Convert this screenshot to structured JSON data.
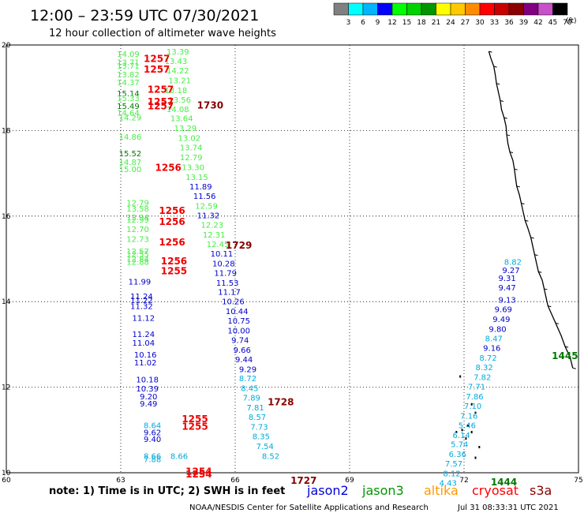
{
  "header": {
    "title": "12:00 – 23:59 UTC 07/30/2021",
    "subtitle": "12 hour collection of altimeter wave heights"
  },
  "colorbar": {
    "colors": [
      "#808080",
      "#00ffff",
      "#00b4ff",
      "#0000ff",
      "#00ff00",
      "#00d200",
      "#009600",
      "#ffff00",
      "#ffc800",
      "#ff8c00",
      "#ff0000",
      "#c80000",
      "#8b0000",
      "#800080",
      "#c850c8",
      "#000000"
    ],
    "labels": [
      "3",
      "6",
      "9",
      "12",
      "15",
      "18",
      "21",
      "24",
      "27",
      "30",
      "33",
      "36",
      "39",
      "42",
      "45",
      "70"
    ],
    "unit": "(ft)"
  },
  "footer": {
    "note": "note: 1) Time is in UTC; 2) SWH is in feet",
    "satellites": [
      {
        "name": "jason2",
        "color": "#0000dd"
      },
      {
        "name": "jason3",
        "color": "#009600"
      },
      {
        "name": "altika",
        "color": "#ff9900"
      },
      {
        "name": "cryosat",
        "color": "#ff0000"
      },
      {
        "name": "s3a",
        "color": "#8b0000"
      }
    ],
    "credit": "NOAA/NESDIS Center for Satellite Applications and Research",
    "timestamp": "Jul 31 08:33:31 UTC 2021"
  },
  "chart_data": {
    "type": "scatter",
    "xlim": [
      60,
      75
    ],
    "ylim": [
      10,
      20
    ],
    "xticks": [
      "60",
      "63",
      "66",
      "69",
      "72",
      "75"
    ],
    "yticks": [
      "10",
      "12",
      "14",
      "16",
      "18",
      "20"
    ],
    "grid": true,
    "colors": {
      "g": "#44ee44",
      "dg": "#007700",
      "b": "#0000cc",
      "c": "#00aadd",
      "r": "#ee0000",
      "m": "#880000"
    },
    "wave_labels": [
      {
        "x": 62.9,
        "y": 19.8,
        "t": "14.09",
        "c": "g"
      },
      {
        "x": 64.2,
        "y": 19.85,
        "t": "13.39",
        "c": "g"
      },
      {
        "x": 64.15,
        "y": 19.63,
        "t": "13.43",
        "c": "g"
      },
      {
        "x": 62.9,
        "y": 19.6,
        "t": "13.71",
        "c": "g"
      },
      {
        "x": 62.9,
        "y": 19.52,
        "t": "13.71",
        "c": "g"
      },
      {
        "x": 64.2,
        "y": 19.41,
        "t": "14.22",
        "c": "g"
      },
      {
        "x": 62.9,
        "y": 19.32,
        "t": "13.82",
        "c": "g"
      },
      {
        "x": 64.25,
        "y": 19.18,
        "t": "13.21",
        "c": "g"
      },
      {
        "x": 62.9,
        "y": 19.13,
        "t": "14.37",
        "c": "g"
      },
      {
        "x": 64.15,
        "y": 18.95,
        "t": "13.18",
        "c": "g"
      },
      {
        "x": 62.9,
        "y": 18.87,
        "t": "15.14",
        "c": "dg"
      },
      {
        "x": 64.25,
        "y": 18.73,
        "t": "13.56",
        "c": "g"
      },
      {
        "x": 62.9,
        "y": 18.76,
        "t": "15.33",
        "c": "g"
      },
      {
        "x": 62.9,
        "y": 18.58,
        "t": "15.49",
        "c": "dg"
      },
      {
        "x": 64.2,
        "y": 18.51,
        "t": "14.08",
        "c": "g"
      },
      {
        "x": 62.9,
        "y": 18.42,
        "t": "14.64",
        "c": "g"
      },
      {
        "x": 62.95,
        "y": 18.31,
        "t": "14.29",
        "c": "g"
      },
      {
        "x": 64.3,
        "y": 18.29,
        "t": "13.64",
        "c": "g"
      },
      {
        "x": 64.4,
        "y": 18.06,
        "t": "13.29",
        "c": "g"
      },
      {
        "x": 62.95,
        "y": 17.86,
        "t": "14.86",
        "c": "g"
      },
      {
        "x": 64.5,
        "y": 17.83,
        "t": "13.02",
        "c": "g"
      },
      {
        "x": 64.55,
        "y": 17.61,
        "t": "13.74",
        "c": "g"
      },
      {
        "x": 62.95,
        "y": 17.47,
        "t": "15.52",
        "c": "dg"
      },
      {
        "x": 64.55,
        "y": 17.38,
        "t": "12.79",
        "c": "g"
      },
      {
        "x": 62.95,
        "y": 17.27,
        "t": "14.87",
        "c": "g"
      },
      {
        "x": 64.6,
        "y": 17.15,
        "t": "13.30",
        "c": "g"
      },
      {
        "x": 62.95,
        "y": 17.1,
        "t": "15.00",
        "c": "g"
      },
      {
        "x": 64.7,
        "y": 16.92,
        "t": "13.15",
        "c": "g"
      },
      {
        "x": 64.8,
        "y": 16.7,
        "t": "11.89",
        "c": "b"
      },
      {
        "x": 64.9,
        "y": 16.48,
        "t": "11.56",
        "c": "b"
      },
      {
        "x": 63.15,
        "y": 16.32,
        "t": "12.79",
        "c": "g"
      },
      {
        "x": 64.95,
        "y": 16.25,
        "t": "12.59",
        "c": "g"
      },
      {
        "x": 63.15,
        "y": 16.18,
        "t": "13.58",
        "c": "g"
      },
      {
        "x": 65.0,
        "y": 16.02,
        "t": "11.32",
        "c": "b"
      },
      {
        "x": 63.15,
        "y": 15.98,
        "t": "12.94",
        "c": "g"
      },
      {
        "x": 63.15,
        "y": 15.92,
        "t": "12.99",
        "c": "g"
      },
      {
        "x": 65.1,
        "y": 15.8,
        "t": "12.23",
        "c": "g"
      },
      {
        "x": 63.15,
        "y": 15.7,
        "t": "12.70",
        "c": "g"
      },
      {
        "x": 65.15,
        "y": 15.57,
        "t": "12.31",
        "c": "g"
      },
      {
        "x": 63.15,
        "y": 15.47,
        "t": "12.73",
        "c": "g"
      },
      {
        "x": 65.25,
        "y": 15.35,
        "t": "12.45",
        "c": "g"
      },
      {
        "x": 63.15,
        "y": 15.18,
        "t": "12.57",
        "c": "g"
      },
      {
        "x": 63.15,
        "y": 15.12,
        "t": "12.55",
        "c": "g"
      },
      {
        "x": 65.35,
        "y": 15.13,
        "t": "10.11",
        "c": "b"
      },
      {
        "x": 63.15,
        "y": 15.0,
        "t": "12.84",
        "c": "g"
      },
      {
        "x": 63.15,
        "y": 14.94,
        "t": "12.88",
        "c": "g"
      },
      {
        "x": 65.4,
        "y": 14.9,
        "t": "10.28",
        "c": "b"
      },
      {
        "x": 65.45,
        "y": 14.68,
        "t": "11.79",
        "c": "b"
      },
      {
        "x": 63.2,
        "y": 14.47,
        "t": "11.99",
        "c": "b"
      },
      {
        "x": 65.5,
        "y": 14.45,
        "t": "11.53",
        "c": "b"
      },
      {
        "x": 65.55,
        "y": 14.23,
        "t": "11.17",
        "c": "b"
      },
      {
        "x": 63.25,
        "y": 14.13,
        "t": "11.24",
        "c": "b"
      },
      {
        "x": 63.25,
        "y": 14.04,
        "t": "11.22",
        "c": "b"
      },
      {
        "x": 65.65,
        "y": 14.01,
        "t": "10.26",
        "c": "b"
      },
      {
        "x": 63.25,
        "y": 13.9,
        "t": "11.32",
        "c": "b"
      },
      {
        "x": 65.75,
        "y": 13.78,
        "t": "10.44",
        "c": "b"
      },
      {
        "x": 63.3,
        "y": 13.63,
        "t": "11.12",
        "c": "b"
      },
      {
        "x": 65.8,
        "y": 13.56,
        "t": "10.75",
        "c": "b"
      },
      {
        "x": 65.8,
        "y": 13.33,
        "t": "10.00",
        "c": "b"
      },
      {
        "x": 63.3,
        "y": 13.25,
        "t": "11.24",
        "c": "b"
      },
      {
        "x": 63.3,
        "y": 13.04,
        "t": "11.04",
        "c": "b"
      },
      {
        "x": 65.9,
        "y": 13.11,
        "t": "9.74",
        "c": "b"
      },
      {
        "x": 65.95,
        "y": 12.88,
        "t": "9.66",
        "c": "b"
      },
      {
        "x": 63.35,
        "y": 12.77,
        "t": "10.16",
        "c": "b"
      },
      {
        "x": 66.0,
        "y": 12.66,
        "t": "9.44",
        "c": "b"
      },
      {
        "x": 63.35,
        "y": 12.58,
        "t": "11.02",
        "c": "b"
      },
      {
        "x": 66.1,
        "y": 12.43,
        "t": "9.29",
        "c": "b"
      },
      {
        "x": 63.4,
        "y": 12.19,
        "t": "10.18",
        "c": "b"
      },
      {
        "x": 66.1,
        "y": 12.21,
        "t": "8.72",
        "c": "c"
      },
      {
        "x": 63.4,
        "y": 11.97,
        "t": "10.39",
        "c": "b"
      },
      {
        "x": 66.15,
        "y": 11.98,
        "t": "8.45",
        "c": "c"
      },
      {
        "x": 63.5,
        "y": 11.79,
        "t": "9.20",
        "c": "b"
      },
      {
        "x": 66.2,
        "y": 11.76,
        "t": "7.89",
        "c": "c"
      },
      {
        "x": 63.5,
        "y": 11.62,
        "t": "9.49",
        "c": "b"
      },
      {
        "x": 66.3,
        "y": 11.53,
        "t": "7.81",
        "c": "c"
      },
      {
        "x": 66.35,
        "y": 11.31,
        "t": "8.57",
        "c": "c"
      },
      {
        "x": 63.6,
        "y": 11.12,
        "t": "8.64",
        "c": "c"
      },
      {
        "x": 66.4,
        "y": 11.08,
        "t": "7.73",
        "c": "c"
      },
      {
        "x": 63.6,
        "y": 10.95,
        "t": "9.62",
        "c": "b"
      },
      {
        "x": 66.45,
        "y": 10.86,
        "t": "8.35",
        "c": "c"
      },
      {
        "x": 63.6,
        "y": 10.79,
        "t": "9.40",
        "c": "b"
      },
      {
        "x": 66.55,
        "y": 10.63,
        "t": "7.54",
        "c": "c"
      },
      {
        "x": 63.6,
        "y": 10.4,
        "t": "8.66",
        "c": "c"
      },
      {
        "x": 63.6,
        "y": 10.32,
        "t": "7.88",
        "c": "c"
      },
      {
        "x": 66.7,
        "y": 10.4,
        "t": "8.52",
        "c": "c"
      },
      {
        "x": 64.3,
        "y": 10.4,
        "t": "8.66",
        "c": "c"
      },
      {
        "x": 73.05,
        "y": 14.94,
        "t": "8.82",
        "c": "c"
      },
      {
        "x": 73.0,
        "y": 14.74,
        "t": "9.27",
        "c": "b"
      },
      {
        "x": 72.9,
        "y": 14.56,
        "t": "9.31",
        "c": "b"
      },
      {
        "x": 72.9,
        "y": 14.34,
        "t": "9.47",
        "c": "b"
      },
      {
        "x": 72.9,
        "y": 14.05,
        "t": "9.13",
        "c": "b"
      },
      {
        "x": 72.8,
        "y": 13.83,
        "t": "9.69",
        "c": "b"
      },
      {
        "x": 72.75,
        "y": 13.6,
        "t": "9.49",
        "c": "b"
      },
      {
        "x": 72.65,
        "y": 13.37,
        "t": "9.80",
        "c": "b"
      },
      {
        "x": 72.55,
        "y": 13.15,
        "t": "8.47",
        "c": "c"
      },
      {
        "x": 72.5,
        "y": 12.92,
        "t": "9.16",
        "c": "b"
      },
      {
        "x": 72.4,
        "y": 12.69,
        "t": "8.72",
        "c": "c"
      },
      {
        "x": 72.3,
        "y": 12.47,
        "t": "8.32",
        "c": "c"
      },
      {
        "x": 72.25,
        "y": 12.24,
        "t": "7.82",
        "c": "c"
      },
      {
        "x": 72.1,
        "y": 12.02,
        "t": "7.71",
        "c": "c"
      },
      {
        "x": 72.05,
        "y": 11.79,
        "t": "7.86",
        "c": "c"
      },
      {
        "x": 72.0,
        "y": 11.57,
        "t": "7.10",
        "c": "c"
      },
      {
        "x": 71.9,
        "y": 11.34,
        "t": "7.16",
        "c": "c"
      },
      {
        "x": 71.85,
        "y": 11.12,
        "t": "5.46",
        "c": "c"
      },
      {
        "x": 71.7,
        "y": 10.89,
        "t": "6.14",
        "c": "c"
      },
      {
        "x": 71.65,
        "y": 10.67,
        "t": "5.74",
        "c": "c"
      },
      {
        "x": 71.6,
        "y": 10.44,
        "t": "6.36",
        "c": "c"
      },
      {
        "x": 71.5,
        "y": 10.22,
        "t": "7.57",
        "c": "c"
      },
      {
        "x": 71.45,
        "y": 9.99,
        "t": "8.12",
        "c": "c"
      },
      {
        "x": 71.35,
        "y": 9.77,
        "t": "4.43",
        "c": "c"
      }
    ],
    "time_labels": [
      {
        "x": 63.6,
        "y": 19.7,
        "t": "1257",
        "c": "r"
      },
      {
        "x": 63.6,
        "y": 19.45,
        "t": "1257",
        "c": "r"
      },
      {
        "x": 63.7,
        "y": 18.98,
        "t": "1257",
        "c": "r"
      },
      {
        "x": 63.7,
        "y": 18.69,
        "t": "1257",
        "c": "r"
      },
      {
        "x": 63.7,
        "y": 18.59,
        "t": "1257",
        "c": "r"
      },
      {
        "x": 65.0,
        "y": 18.61,
        "t": "1730",
        "c": "m"
      },
      {
        "x": 63.9,
        "y": 17.15,
        "t": "1256",
        "c": "r"
      },
      {
        "x": 64.0,
        "y": 16.14,
        "t": "1256",
        "c": "r"
      },
      {
        "x": 64.0,
        "y": 15.89,
        "t": "1256",
        "c": "r"
      },
      {
        "x": 64.0,
        "y": 15.41,
        "t": "1256",
        "c": "r"
      },
      {
        "x": 65.75,
        "y": 15.33,
        "t": "1729",
        "c": "m"
      },
      {
        "x": 64.05,
        "y": 14.96,
        "t": "1256",
        "c": "r"
      },
      {
        "x": 64.05,
        "y": 14.73,
        "t": "1255",
        "c": "r"
      },
      {
        "x": 66.85,
        "y": 11.67,
        "t": "1728",
        "c": "m"
      },
      {
        "x": 64.6,
        "y": 11.27,
        "t": "1255",
        "c": "r"
      },
      {
        "x": 64.6,
        "y": 11.1,
        "t": "1255",
        "c": "r"
      },
      {
        "x": 64.7,
        "y": 10.05,
        "t": "1254",
        "c": "r"
      },
      {
        "x": 64.7,
        "y": 9.98,
        "t": "1254",
        "c": "r"
      },
      {
        "x": 67.45,
        "y": 9.83,
        "t": "1727",
        "c": "m"
      },
      {
        "x": 74.3,
        "y": 12.75,
        "t": "1445",
        "c": "dg"
      },
      {
        "x": 72.7,
        "y": 9.8,
        "t": "1444",
        "c": "dg"
      }
    ],
    "coastline": [
      [
        72.65,
        19.85
      ],
      [
        72.7,
        19.7
      ],
      [
        72.78,
        19.5
      ],
      [
        72.82,
        19.3
      ],
      [
        72.85,
        19.1
      ],
      [
        72.9,
        18.9
      ],
      [
        72.95,
        18.7
      ],
      [
        72.98,
        18.5
      ],
      [
        73.05,
        18.3
      ],
      [
        73.1,
        18.1
      ],
      [
        73.12,
        17.9
      ],
      [
        73.15,
        17.7
      ],
      [
        73.2,
        17.5
      ],
      [
        73.28,
        17.3
      ],
      [
        73.32,
        17.1
      ],
      [
        73.35,
        16.9
      ],
      [
        73.38,
        16.7
      ],
      [
        73.45,
        16.5
      ],
      [
        73.5,
        16.3
      ],
      [
        73.55,
        16.1
      ],
      [
        73.6,
        15.9
      ],
      [
        73.68,
        15.7
      ],
      [
        73.75,
        15.5
      ],
      [
        73.8,
        15.3
      ],
      [
        73.85,
        15.1
      ],
      [
        73.9,
        14.9
      ],
      [
        73.95,
        14.7
      ],
      [
        74.05,
        14.5
      ],
      [
        74.1,
        14.3
      ],
      [
        74.15,
        14.1
      ],
      [
        74.2,
        13.9
      ],
      [
        74.3,
        13.7
      ],
      [
        74.4,
        13.5
      ],
      [
        74.55,
        13.2
      ],
      [
        74.65,
        12.95
      ],
      [
        74.78,
        12.7
      ],
      [
        74.85,
        12.45
      ]
    ],
    "islands": [
      [
        71.9,
        12.25
      ],
      [
        72.2,
        11.6
      ],
      [
        72.3,
        11.4
      ],
      [
        72.1,
        11.1
      ],
      [
        71.95,
        11.0
      ],
      [
        72.2,
        10.95
      ],
      [
        72.05,
        10.8
      ],
      [
        71.8,
        10.95
      ],
      [
        72.4,
        10.6
      ],
      [
        72.3,
        10.35
      ]
    ]
  }
}
